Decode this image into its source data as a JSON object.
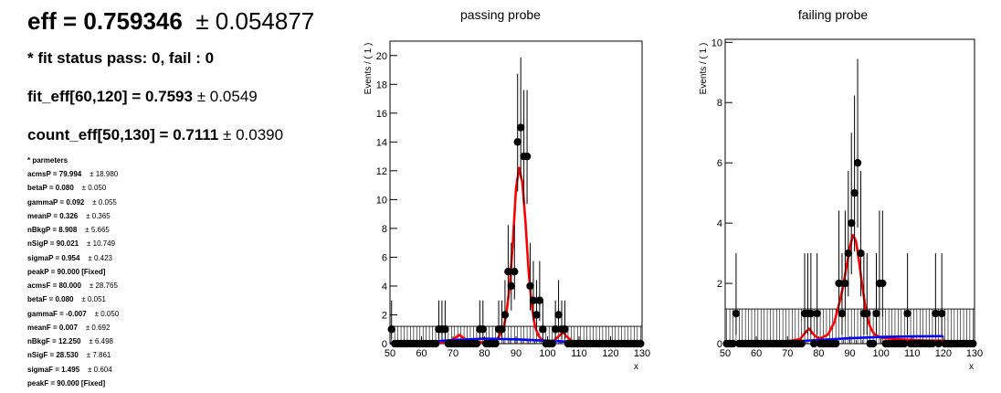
{
  "summary": {
    "eff_label": "eff = 0.759346",
    "eff_error": "± 0.054877",
    "fit_status": "* fit status pass: 0, fail : 0",
    "fit_eff_label": "fit_eff[60,120] = 0.7593",
    "fit_eff_error": "± 0.0549",
    "count_eff_label": "count_eff[50,130] = 0.7111",
    "count_eff_error": "± 0.0390",
    "params_title": "* parmeters"
  },
  "parameters": [
    {
      "name_value": "acmsP = 79.994",
      "error": "± 18.980"
    },
    {
      "name_value": "betaP = 0.080",
      "error": "± 0.050"
    },
    {
      "name_value": "gammaP = 0.092",
      "error": "± 0.055"
    },
    {
      "name_value": "meanP = 0.326",
      "error": "± 0.365"
    },
    {
      "name_value": "nBkgP = 8.908",
      "error": "± 5.665"
    },
    {
      "name_value": "nSigP = 90.021",
      "error": "± 10.749"
    },
    {
      "name_value": "sigmaP = 0.954",
      "error": "± 0.423"
    },
    {
      "name_value": "peakP = 90.000 [Fixed]",
      "error": ""
    },
    {
      "name_value": "acmsF = 80.000",
      "error": "± 28.765"
    },
    {
      "name_value": "betaF = 0.080",
      "error": "± 0.051"
    },
    {
      "name_value": "gammaF = -0.007",
      "error": "± 0.050"
    },
    {
      "name_value": "meanF = 0.007",
      "error": "± 0.692"
    },
    {
      "name_value": "nBkgF = 12.250",
      "error": "± 6.498"
    },
    {
      "name_value": "nSigF = 28.530",
      "error": "± 7.861"
    },
    {
      "name_value": "sigmaF = 1.495",
      "error": "± 0.604"
    },
    {
      "name_value": "peakF = 90.000 [Fixed]",
      "error": ""
    }
  ],
  "chart_data": [
    {
      "type": "scatter",
      "title": "passing probe",
      "xlabel": "x",
      "ylabel": "Events / ( 1 )",
      "xlim": [
        50,
        130
      ],
      "ylim": [
        0,
        21
      ],
      "xticks": [
        50,
        60,
        70,
        80,
        90,
        100,
        110,
        120,
        130
      ],
      "yticks": [
        0,
        2,
        4,
        6,
        8,
        10,
        12,
        14,
        16,
        18,
        20
      ],
      "background_error_band": 1.2,
      "points": [
        {
          "x": 50.5,
          "y": 1
        },
        {
          "x": 51.5,
          "y": 0
        },
        {
          "x": 52.5,
          "y": 0
        },
        {
          "x": 53.5,
          "y": 0
        },
        {
          "x": 54.5,
          "y": 0
        },
        {
          "x": 55.5,
          "y": 0
        },
        {
          "x": 56.5,
          "y": 0
        },
        {
          "x": 57.5,
          "y": 0
        },
        {
          "x": 58.5,
          "y": 0
        },
        {
          "x": 59.5,
          "y": 0
        },
        {
          "x": 60.5,
          "y": 0
        },
        {
          "x": 61.5,
          "y": 0
        },
        {
          "x": 62.5,
          "y": 0
        },
        {
          "x": 63.5,
          "y": 0
        },
        {
          "x": 64.5,
          "y": 0
        },
        {
          "x": 65.5,
          "y": 1
        },
        {
          "x": 66.5,
          "y": 1
        },
        {
          "x": 67.5,
          "y": 1
        },
        {
          "x": 68.5,
          "y": 0
        },
        {
          "x": 69.5,
          "y": 0
        },
        {
          "x": 70.5,
          "y": 0
        },
        {
          "x": 71.5,
          "y": 0
        },
        {
          "x": 72.5,
          "y": 0
        },
        {
          "x": 73.5,
          "y": 0
        },
        {
          "x": 74.5,
          "y": 0
        },
        {
          "x": 75.5,
          "y": 0
        },
        {
          "x": 76.5,
          "y": 0
        },
        {
          "x": 77.5,
          "y": 0
        },
        {
          "x": 78.5,
          "y": 1
        },
        {
          "x": 79.5,
          "y": 1
        },
        {
          "x": 80.5,
          "y": 0
        },
        {
          "x": 81.5,
          "y": 0
        },
        {
          "x": 82.5,
          "y": 0
        },
        {
          "x": 83.5,
          "y": 0
        },
        {
          "x": 84.5,
          "y": 1
        },
        {
          "x": 85.5,
          "y": 1
        },
        {
          "x": 86.5,
          "y": 2
        },
        {
          "x": 87.5,
          "y": 5
        },
        {
          "x": 88.5,
          "y": 4
        },
        {
          "x": 89.5,
          "y": 5
        },
        {
          "x": 90.5,
          "y": 14
        },
        {
          "x": 91.5,
          "y": 15
        },
        {
          "x": 92.5,
          "y": 13
        },
        {
          "x": 93.5,
          "y": 13
        },
        {
          "x": 94.5,
          "y": 4
        },
        {
          "x": 95.5,
          "y": 3
        },
        {
          "x": 96.5,
          "y": 2
        },
        {
          "x": 97.5,
          "y": 3
        },
        {
          "x": 98.5,
          "y": 1
        },
        {
          "x": 99.5,
          "y": 0
        },
        {
          "x": 100.5,
          "y": 0
        },
        {
          "x": 101.5,
          "y": 0
        },
        {
          "x": 102.5,
          "y": 1
        },
        {
          "x": 103.5,
          "y": 2
        },
        {
          "x": 104.5,
          "y": 1
        },
        {
          "x": 105.5,
          "y": 1
        },
        {
          "x": 106.5,
          "y": 0
        },
        {
          "x": 107.5,
          "y": 0
        },
        {
          "x": 108.5,
          "y": 0
        },
        {
          "x": 109.5,
          "y": 0
        },
        {
          "x": 110.5,
          "y": 0
        },
        {
          "x": 111.5,
          "y": 0
        },
        {
          "x": 112.5,
          "y": 0
        },
        {
          "x": 113.5,
          "y": 0
        },
        {
          "x": 114.5,
          "y": 0
        },
        {
          "x": 115.5,
          "y": 0
        },
        {
          "x": 116.5,
          "y": 0
        },
        {
          "x": 117.5,
          "y": 0
        },
        {
          "x": 118.5,
          "y": 0
        },
        {
          "x": 119.5,
          "y": 0
        },
        {
          "x": 120.5,
          "y": 0
        },
        {
          "x": 121.5,
          "y": 0
        },
        {
          "x": 122.5,
          "y": 0
        },
        {
          "x": 123.5,
          "y": 0
        },
        {
          "x": 124.5,
          "y": 0
        },
        {
          "x": 125.5,
          "y": 0
        },
        {
          "x": 126.5,
          "y": 0
        },
        {
          "x": 127.5,
          "y": 0
        },
        {
          "x": 128.5,
          "y": 0
        },
        {
          "x": 129.5,
          "y": 0
        }
      ],
      "curves": [
        {
          "color": "#ff0000",
          "points": [
            [
              60,
              0.05
            ],
            [
              68,
              0.1
            ],
            [
              70,
              0.3
            ],
            [
              72,
              0.6
            ],
            [
              74,
              0.3
            ],
            [
              76,
              0.1
            ],
            [
              80,
              0.1
            ],
            [
              84,
              0.3
            ],
            [
              86,
              1.0
            ],
            [
              87,
              2.2
            ],
            [
              88,
              4.0
            ],
            [
              89,
              7.0
            ],
            [
              90,
              10.8
            ],
            [
              91,
              12.2
            ],
            [
              92,
              11.2
            ],
            [
              93,
              8.5
            ],
            [
              94,
              5.0
            ],
            [
              95,
              2.6
            ],
            [
              96,
              1.2
            ],
            [
              97,
              0.6
            ],
            [
              98,
              0.3
            ],
            [
              100,
              0.1
            ],
            [
              102,
              0.2
            ],
            [
              104,
              0.6
            ],
            [
              105,
              0.8
            ],
            [
              106,
              0.5
            ],
            [
              108,
              0.15
            ],
            [
              112,
              0.05
            ],
            [
              120,
              0.03
            ],
            [
              130,
              0.02
            ]
          ]
        },
        {
          "color": "#0000ff",
          "points": [
            [
              50,
              0.02
            ],
            [
              60,
              0.1
            ],
            [
              70,
              0.25
            ],
            [
              80,
              0.35
            ],
            [
              90,
              0.3
            ],
            [
              100,
              0.2
            ],
            [
              110,
              0.1
            ],
            [
              120,
              0.05
            ],
            [
              130,
              0.02
            ]
          ]
        }
      ]
    },
    {
      "type": "scatter",
      "title": "failing probe",
      "xlabel": "x",
      "ylabel": "Events / ( 1 )",
      "xlim": [
        50,
        130
      ],
      "ylim": [
        0,
        10.1
      ],
      "xticks": [
        50,
        60,
        70,
        80,
        90,
        100,
        110,
        120,
        130
      ],
      "yticks": [
        0,
        2,
        4,
        6,
        8,
        10
      ],
      "background_error_band": 1.15,
      "points": [
        {
          "x": 50.5,
          "y": 0
        },
        {
          "x": 51.5,
          "y": 0
        },
        {
          "x": 52.5,
          "y": 0
        },
        {
          "x": 53.5,
          "y": 1
        },
        {
          "x": 54.5,
          "y": 0
        },
        {
          "x": 55.5,
          "y": 0
        },
        {
          "x": 56.5,
          "y": 0
        },
        {
          "x": 57.5,
          "y": 0
        },
        {
          "x": 58.5,
          "y": 0
        },
        {
          "x": 59.5,
          "y": 0
        },
        {
          "x": 60.5,
          "y": 0
        },
        {
          "x": 61.5,
          "y": 0
        },
        {
          "x": 62.5,
          "y": 0
        },
        {
          "x": 63.5,
          "y": 0
        },
        {
          "x": 64.5,
          "y": 0
        },
        {
          "x": 65.5,
          "y": 0
        },
        {
          "x": 66.5,
          "y": 0
        },
        {
          "x": 67.5,
          "y": 0
        },
        {
          "x": 68.5,
          "y": 0
        },
        {
          "x": 69.5,
          "y": 0
        },
        {
          "x": 70.5,
          "y": 0
        },
        {
          "x": 71.5,
          "y": 0
        },
        {
          "x": 72.5,
          "y": 0
        },
        {
          "x": 73.5,
          "y": 0
        },
        {
          "x": 74.5,
          "y": 0
        },
        {
          "x": 75.5,
          "y": 1
        },
        {
          "x": 76.5,
          "y": 1
        },
        {
          "x": 77.5,
          "y": 1
        },
        {
          "x": 78.5,
          "y": 0
        },
        {
          "x": 79.5,
          "y": 1
        },
        {
          "x": 80.5,
          "y": 0
        },
        {
          "x": 81.5,
          "y": 0
        },
        {
          "x": 82.5,
          "y": 0
        },
        {
          "x": 83.5,
          "y": 0
        },
        {
          "x": 84.5,
          "y": 0
        },
        {
          "x": 85.5,
          "y": 0
        },
        {
          "x": 86.5,
          "y": 2
        },
        {
          "x": 87.5,
          "y": 1
        },
        {
          "x": 88.5,
          "y": 2
        },
        {
          "x": 89.5,
          "y": 3
        },
        {
          "x": 90.5,
          "y": 4
        },
        {
          "x": 91.5,
          "y": 5
        },
        {
          "x": 92.5,
          "y": 6
        },
        {
          "x": 93.5,
          "y": 3
        },
        {
          "x": 94.5,
          "y": 1
        },
        {
          "x": 95.5,
          "y": 1
        },
        {
          "x": 96.5,
          "y": 0
        },
        {
          "x": 97.5,
          "y": 0
        },
        {
          "x": 98.5,
          "y": 1
        },
        {
          "x": 99.5,
          "y": 2
        },
        {
          "x": 100.5,
          "y": 2
        },
        {
          "x": 101.5,
          "y": 0
        },
        {
          "x": 102.5,
          "y": 0
        },
        {
          "x": 103.5,
          "y": 0
        },
        {
          "x": 104.5,
          "y": 0
        },
        {
          "x": 105.5,
          "y": 0
        },
        {
          "x": 106.5,
          "y": 0
        },
        {
          "x": 107.5,
          "y": 0
        },
        {
          "x": 108.5,
          "y": 1
        },
        {
          "x": 109.5,
          "y": 0
        },
        {
          "x": 110.5,
          "y": 0
        },
        {
          "x": 111.5,
          "y": 0
        },
        {
          "x": 112.5,
          "y": 0
        },
        {
          "x": 113.5,
          "y": 0
        },
        {
          "x": 114.5,
          "y": 0
        },
        {
          "x": 115.5,
          "y": 0
        },
        {
          "x": 116.5,
          "y": 0
        },
        {
          "x": 117.5,
          "y": 1
        },
        {
          "x": 118.5,
          "y": 0
        },
        {
          "x": 119.5,
          "y": 1
        },
        {
          "x": 120.5,
          "y": 0
        },
        {
          "x": 121.5,
          "y": 0
        },
        {
          "x": 122.5,
          "y": 0
        },
        {
          "x": 123.5,
          "y": 0
        },
        {
          "x": 124.5,
          "y": 0
        },
        {
          "x": 125.5,
          "y": 0
        },
        {
          "x": 126.5,
          "y": 0
        },
        {
          "x": 127.5,
          "y": 0
        },
        {
          "x": 128.5,
          "y": 0
        },
        {
          "x": 129.5,
          "y": 0
        }
      ],
      "curves": [
        {
          "color": "#ff0000",
          "points": [
            [
              60,
              0.03
            ],
            [
              70,
              0.08
            ],
            [
              74,
              0.15
            ],
            [
              76,
              0.4
            ],
            [
              77,
              0.5
            ],
            [
              78,
              0.35
            ],
            [
              80,
              0.15
            ],
            [
              83,
              0.3
            ],
            [
              85,
              0.7
            ],
            [
              86,
              1.1
            ],
            [
              87,
              1.5
            ],
            [
              88,
              2.0
            ],
            [
              89,
              2.6
            ],
            [
              90,
              3.2
            ],
            [
              91,
              3.6
            ],
            [
              92,
              3.4
            ],
            [
              93,
              2.7
            ],
            [
              94,
              1.9
            ],
            [
              95,
              1.2
            ],
            [
              96,
              0.7
            ],
            [
              97,
              0.45
            ],
            [
              98,
              0.3
            ],
            [
              100,
              0.2
            ],
            [
              105,
              0.15
            ],
            [
              110,
              0.12
            ],
            [
              115,
              0.1
            ],
            [
              120,
              0.1
            ]
          ]
        },
        {
          "color": "#0000ff",
          "points": [
            [
              60,
              0.02
            ],
            [
              70,
              0.06
            ],
            [
              80,
              0.12
            ],
            [
              90,
              0.18
            ],
            [
              100,
              0.22
            ],
            [
              110,
              0.24
            ],
            [
              120,
              0.25
            ]
          ]
        }
      ]
    }
  ]
}
